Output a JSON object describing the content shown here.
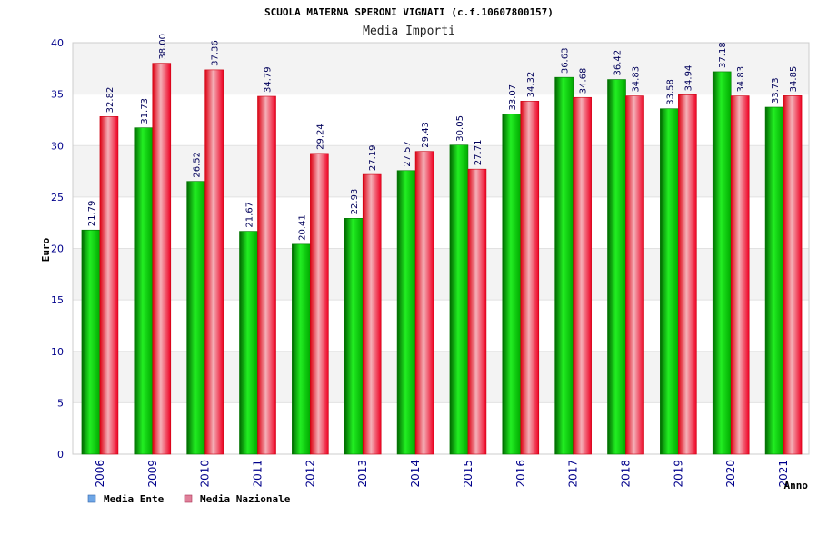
{
  "chart_data": {
    "type": "bar",
    "title": "SCUOLA MATERNA SPERONI VIGNATI (c.f.10607800157)",
    "subtitle": "Media Importi",
    "xlabel": "Anno",
    "ylabel": "Euro",
    "ylim": [
      0,
      40
    ],
    "yticks": [
      "0",
      "5",
      "10",
      "15",
      "20",
      "25",
      "30",
      "35",
      "40"
    ],
    "grid": true,
    "legend_position": "bottom-left",
    "categories": [
      "2006",
      "2009",
      "2010",
      "2011",
      "2012",
      "2013",
      "2014",
      "2015",
      "2016",
      "2017",
      "2018",
      "2019",
      "2020",
      "2021"
    ],
    "series": [
      {
        "name": "Media Ente",
        "color": "#00cc00",
        "legend_color": "#6ea6e6",
        "values": [
          21.79,
          31.73,
          26.52,
          21.67,
          20.41,
          22.93,
          27.57,
          30.05,
          33.07,
          36.63,
          36.42,
          33.58,
          37.18,
          33.73
        ],
        "labels": [
          "21.79",
          "31.73",
          "26.52",
          "21.67",
          "20.41",
          "22.93",
          "27.57",
          "30.05",
          "33.07",
          "36.63",
          "36.42",
          "33.58",
          "37.18",
          "33.73"
        ]
      },
      {
        "name": "Media Nazionale",
        "color": "#ff2233",
        "legend_color": "#e0809a",
        "values": [
          32.82,
          38.0,
          37.36,
          34.79,
          29.24,
          27.19,
          29.43,
          27.71,
          34.32,
          34.68,
          34.83,
          34.94,
          34.83,
          34.85
        ],
        "labels": [
          "32.82",
          "38.00",
          "37.36",
          "34.79",
          "29.24",
          "27.19",
          "29.43",
          "27.71",
          "34.32",
          "34.68",
          "34.83",
          "34.94",
          "34.83",
          "34.85"
        ]
      }
    ]
  }
}
